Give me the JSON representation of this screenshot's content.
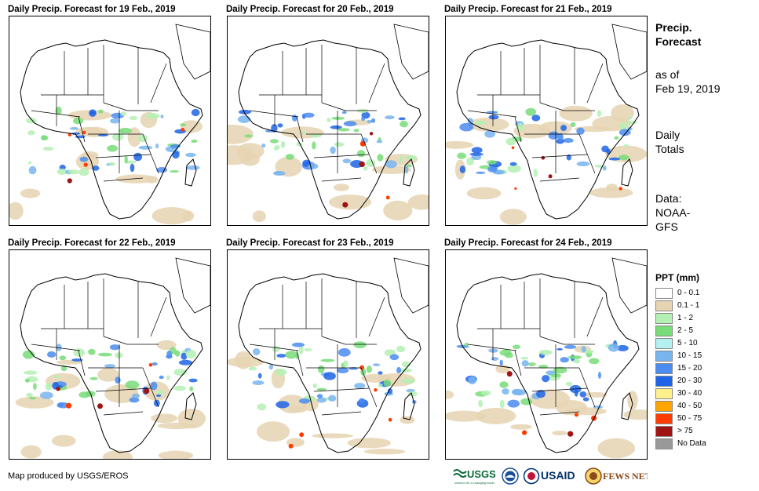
{
  "panels": [
    {
      "title": "Daily Precip. Forecast for 19 Feb., 2019"
    },
    {
      "title": "Daily Precip. Forecast for 20 Feb., 2019"
    },
    {
      "title": "Daily Precip. Forecast for 21 Feb., 2019"
    },
    {
      "title": "Daily Precip. Forecast for 22 Feb., 2019"
    },
    {
      "title": "Daily Precip. Forecast for 23 Feb., 2019"
    },
    {
      "title": "Daily Precip. Forecast for 24 Feb., 2019"
    }
  ],
  "sidebar": {
    "heading_line1": "Precip.",
    "heading_line2": "Forecast",
    "asof_line1": "as of",
    "asof_line2": "Feb 19, 2019",
    "totals_line1": "Daily",
    "totals_line2": "Totals",
    "data_line1": "Data:",
    "data_line2": "NOAA-",
    "data_line3": "GFS"
  },
  "legend": {
    "title": "PPT (mm)",
    "items": [
      {
        "label": "0 - 0.1",
        "color": "#ffffff"
      },
      {
        "label": "0.1 - 1",
        "color": "#e6d3b1"
      },
      {
        "label": "1 - 2",
        "color": "#b4f0b4"
      },
      {
        "label": "2 - 5",
        "color": "#78dc78"
      },
      {
        "label": "5 - 10",
        "color": "#b4f0f0"
      },
      {
        "label": "10 - 15",
        "color": "#78b4f0"
      },
      {
        "label": "15 - 20",
        "color": "#4b8cf0"
      },
      {
        "label": "20 - 30",
        "color": "#1e64e6"
      },
      {
        "label": "30 - 40",
        "color": "#fff08c"
      },
      {
        "label": "40 - 50",
        "color": "#ffa500"
      },
      {
        "label": "50 - 75",
        "color": "#ff3c00"
      },
      {
        "label": "> 75",
        "color": "#a01414"
      },
      {
        "label": "No Data",
        "color": "#999999"
      }
    ]
  },
  "credit": "Map produced by USGS/EROS",
  "logos": {
    "usgs": "USGS",
    "usgs_tagline": "science for a changing world",
    "usaid": "USAID",
    "fewsnet": "FEWS NET"
  }
}
